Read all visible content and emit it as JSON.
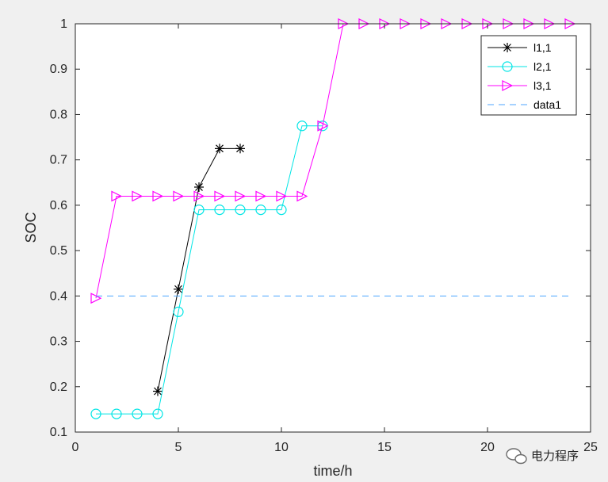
{
  "chart_data": {
    "type": "line",
    "title": "",
    "xlabel": "time/h",
    "ylabel": "SOC",
    "xlim": [
      0,
      25
    ],
    "ylim": [
      0.1,
      1
    ],
    "xticks": [
      0,
      5,
      10,
      15,
      20,
      25
    ],
    "yticks": [
      0.1,
      0.2,
      0.3,
      0.4,
      0.5,
      0.6,
      0.7,
      0.8,
      0.9,
      1
    ],
    "grid": false,
    "legend_position": "top-right",
    "series": [
      {
        "name": "l1,1",
        "color": "#000000",
        "marker": "asterisk",
        "linestyle": "solid",
        "x": [
          4,
          5,
          6,
          7,
          8
        ],
        "y": [
          0.19,
          0.415,
          0.64,
          0.725,
          0.725
        ]
      },
      {
        "name": "l2,1",
        "color": "#00e5e5",
        "marker": "circle",
        "linestyle": "solid",
        "x": [
          1,
          2,
          3,
          4,
          5,
          6,
          7,
          8,
          9,
          10,
          11,
          12
        ],
        "y": [
          0.14,
          0.14,
          0.14,
          0.14,
          0.365,
          0.59,
          0.59,
          0.59,
          0.59,
          0.59,
          0.775,
          0.775
        ]
      },
      {
        "name": "l3,1",
        "color": "#ff00ff",
        "marker": "triangle-right",
        "linestyle": "solid",
        "x": [
          1,
          2,
          3,
          4,
          5,
          6,
          7,
          8,
          9,
          10,
          11,
          12,
          13,
          14,
          15,
          16,
          17,
          18,
          19,
          20,
          21,
          22,
          23,
          24
        ],
        "y": [
          0.395,
          0.62,
          0.62,
          0.62,
          0.62,
          0.62,
          0.62,
          0.62,
          0.62,
          0.62,
          0.62,
          0.775,
          1,
          1,
          1,
          1,
          1,
          1,
          1,
          1,
          1,
          1,
          1,
          1
        ]
      },
      {
        "name": "data1",
        "color": "#4da6ff",
        "marker": "none",
        "linestyle": "dashed",
        "x": [
          1,
          24
        ],
        "y": [
          0.4,
          0.4
        ]
      }
    ]
  },
  "watermark": {
    "text": "电力程序",
    "icon": "wechat-icon"
  }
}
